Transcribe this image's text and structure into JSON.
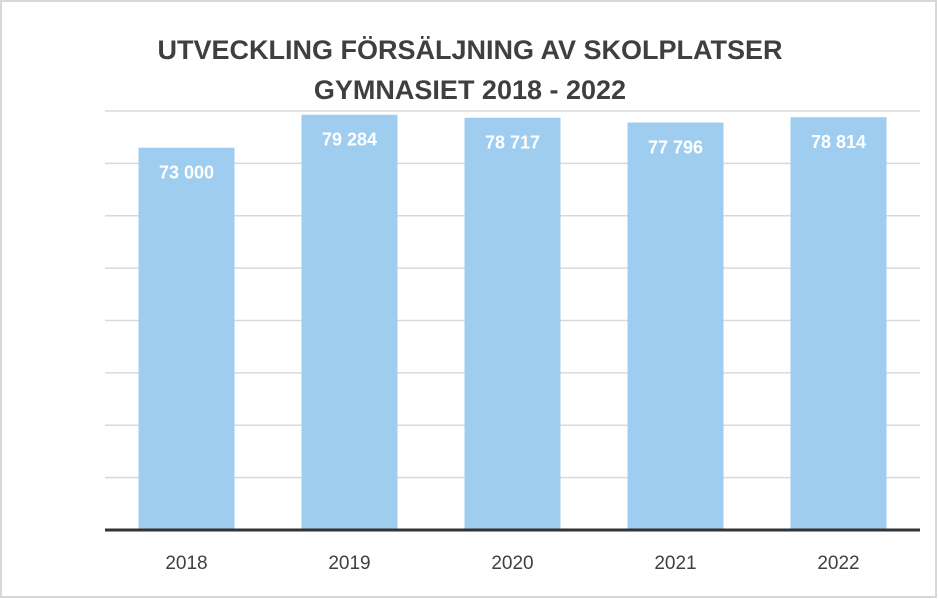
{
  "chart_data": {
    "type": "bar",
    "title": [
      "UTVECKLING FÖRSÄLJNING AV SKOLPLATSER",
      "GYMNASIET 2018 - 2022"
    ],
    "categories": [
      "2018",
      "2019",
      "2020",
      "2021",
      "2022"
    ],
    "values": [
      73000,
      79284,
      78717,
      77796,
      78814
    ],
    "value_labels": [
      "73 000",
      "79 284",
      "78 717",
      "77 796",
      "78 814"
    ],
    "color": "#9fcdf0",
    "ylim": [
      0,
      80000
    ],
    "yticks": [
      0,
      10000,
      20000,
      30000,
      40000,
      50000,
      60000,
      70000,
      80000
    ],
    "grid": true
  }
}
